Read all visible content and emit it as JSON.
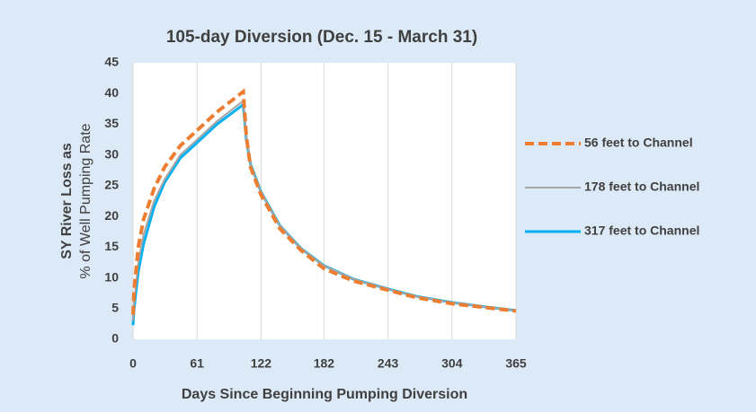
{
  "chart_data": {
    "type": "line",
    "title": "105-day Diversion (Dec. 15 - March 31)",
    "y_label": [
      "SY River Loss as",
      "% of Well Pumping Rate"
    ],
    "x_label": "Days Since Beginning Pumping Diversion",
    "x": [
      0,
      1,
      5,
      10,
      20,
      30,
      45,
      61,
      80,
      105,
      108,
      112,
      122,
      140,
      160,
      182,
      210,
      243,
      270,
      304,
      335,
      365
    ],
    "series": [
      {
        "name": "56 feet to Channel",
        "color": "#ed7d31",
        "dash": true,
        "values": [
          4,
          8,
          15,
          19.5,
          24.5,
          28,
          31.5,
          34,
          37,
          40.3,
          33,
          28,
          23.5,
          18,
          14.5,
          11.5,
          9.5,
          8,
          6.8,
          5.8,
          5.2,
          4.6
        ]
      },
      {
        "name": "178 feet to Channel",
        "color": "#a5a5a5",
        "dash": false,
        "values": [
          3,
          6,
          12.5,
          17,
          22.5,
          26,
          30,
          32.5,
          35.5,
          38.8,
          33,
          28.5,
          24,
          18.5,
          14.8,
          12,
          9.8,
          8.2,
          7,
          6,
          5.3,
          4.7
        ]
      },
      {
        "name": "317 feet to Channel",
        "color": "#00b0f0",
        "dash": false,
        "values": [
          2.3,
          5,
          11,
          15.5,
          21.5,
          25.5,
          29.5,
          32,
          35,
          38.2,
          32.5,
          28.5,
          24,
          18.5,
          14.8,
          12,
          9.8,
          8.2,
          7,
          6,
          5.3,
          4.7
        ]
      }
    ],
    "xlim": [
      0,
      365
    ],
    "xticks": [
      0,
      61,
      122,
      182,
      243,
      304,
      365
    ],
    "ylim": [
      0,
      45
    ],
    "yticks": [
      0,
      5,
      10,
      15,
      20,
      25,
      30,
      35,
      40,
      45
    ],
    "grid": "x",
    "legend": "right"
  }
}
